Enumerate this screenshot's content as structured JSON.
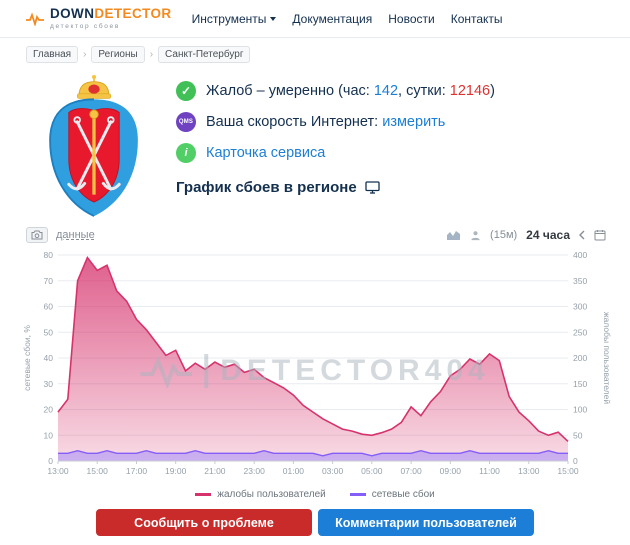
{
  "header": {
    "logo": {
      "word1": "DOWN",
      "word2": "DETECTOR",
      "tagline": "детектор сбоев"
    },
    "nav": [
      {
        "label": "Инструменты"
      },
      {
        "label": "Документация"
      },
      {
        "label": "Новости"
      },
      {
        "label": "Контакты"
      }
    ]
  },
  "breadcrumbs": {
    "items": [
      "Главная",
      "Регионы",
      "Санкт-Петербург"
    ],
    "separator": "›"
  },
  "icons": {
    "check": "✓",
    "info": "i"
  },
  "status": {
    "complaints": {
      "prefix": "Жалоб – умеренно (час: ",
      "hour_value": "142",
      "mid": ", сутки: ",
      "day_value": "12146",
      "suffix": ")"
    },
    "speed": {
      "badge": "QMS",
      "label": "Ваша скорость Интернет: ",
      "link": "измерить"
    },
    "service_card": {
      "link": "Карточка сервиса"
    }
  },
  "section_title": "График сбоев в регионе",
  "chart_toolbar": {
    "data_link": "данные",
    "interval": "(15м)",
    "range": "24 часа"
  },
  "watermark": "DETECTOR404",
  "chart_data": {
    "type": "area",
    "title": "График сбоев в регионе",
    "x_ticks": [
      "13:00",
      "15:00",
      "17:00",
      "19:00",
      "21:00",
      "23:00",
      "01:00",
      "03:00",
      "05:00",
      "07:00",
      "09:00",
      "11:00",
      "13:00",
      "15:00"
    ],
    "left_axis": {
      "label": "сетевые сбои, %",
      "min": 0,
      "max": 80,
      "step": 10
    },
    "right_axis": {
      "label": "жалобы пользователей",
      "min": 0,
      "max": 400,
      "step": 50
    },
    "grid": true,
    "legend_position": "bottom",
    "series": [
      {
        "name": "жалобы пользователей",
        "axis": "right",
        "color": "#d6336c",
        "values": [
          95,
          120,
          350,
          395,
          370,
          380,
          330,
          310,
          275,
          255,
          230,
          205,
          215,
          175,
          190,
          178,
          192,
          182,
          188,
          172,
          178,
          162,
          152,
          142,
          128,
          108,
          95,
          82,
          72,
          62,
          58,
          52,
          50,
          55,
          62,
          75,
          105,
          88,
          115,
          135,
          165,
          178,
          198,
          188,
          208,
          195,
          125,
          95,
          78,
          58,
          50,
          56,
          38
        ]
      },
      {
        "name": "сетевые сбои",
        "axis": "left",
        "color": "#845ef7",
        "fill": "rgba(168,140,250,0.55)",
        "values": [
          3,
          3,
          4,
          3,
          3,
          4,
          3,
          3,
          3,
          4,
          3,
          3,
          3,
          3,
          4,
          3,
          3,
          3,
          3,
          3,
          3,
          4,
          3,
          3,
          3,
          3,
          3,
          2,
          3,
          3,
          3,
          3,
          2,
          3,
          3,
          3,
          3,
          4,
          3,
          3,
          3,
          3,
          4,
          3,
          3,
          3,
          3,
          3,
          3,
          3,
          4,
          3,
          3
        ]
      }
    ]
  },
  "actions": {
    "report_button": "Сообщить о проблеме",
    "comments_button": "Комментарии пользователей"
  },
  "colors": {
    "accent_orange": "#f28a1f",
    "navy": "#14304f",
    "link_blue": "#1c7ed6",
    "hour_value_color": "#1c7ed6",
    "day_value_color": "#e03131",
    "green": "#40c057",
    "qms_purple": "#6f42c1",
    "report_red": "#c92a2a",
    "comments_blue": "#1c7ed6"
  }
}
